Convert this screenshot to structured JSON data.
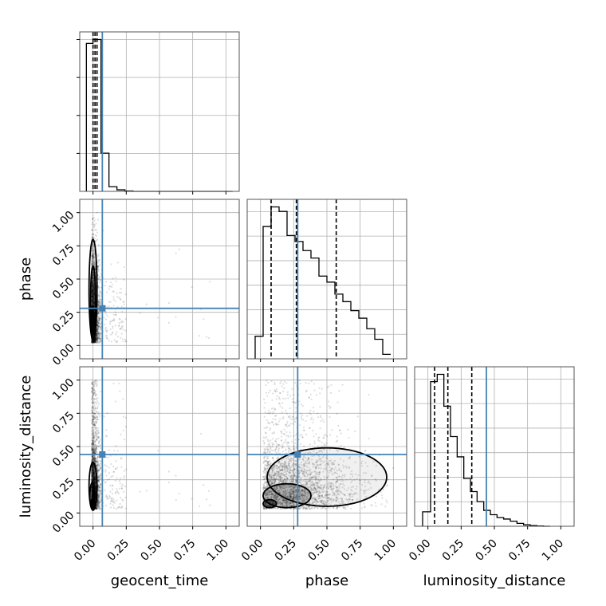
{
  "chart_data": {
    "type": "corner",
    "parameters": [
      "geocent_time",
      "phase",
      "luminosity_distance"
    ],
    "axis_labels": {
      "geocent_time": "geocent_time",
      "phase": "phase",
      "luminosity_distance": "luminosity_distance"
    },
    "range": [
      -0.1,
      1.1
    ],
    "ticks": [
      0.0,
      0.25,
      0.5,
      0.75,
      1.0
    ],
    "tick_labels": [
      "0.00",
      "0.25",
      "0.50",
      "0.75",
      "1.00"
    ],
    "grid": true,
    "truths": {
      "geocent_time": 0.07,
      "phase": 0.28,
      "luminosity_distance": 0.44
    },
    "truth_color": "#4682b4",
    "histogram_color": "#000000",
    "quantiles": {
      "geocent_time": [
        0.0,
        0.015,
        0.03
      ],
      "phase": [
        0.08,
        0.27,
        0.57
      ],
      "luminosity_distance": [
        0.05,
        0.15,
        0.33
      ]
    },
    "histograms": {
      "geocent_time": {
        "bin_edges": [
          -0.05,
          0.0,
          0.06,
          0.12,
          0.18,
          0.24,
          0.3,
          1.05
        ],
        "counts": [
          3.8,
          3.9,
          0.98,
          0.12,
          0.04,
          0.01,
          0.0
        ]
      },
      "phase": {
        "bin_edges": [
          -0.04,
          0.02,
          0.08,
          0.14,
          0.2,
          0.26,
          0.32,
          0.38,
          0.44,
          0.5,
          0.56,
          0.62,
          0.68,
          0.74,
          0.8,
          0.86,
          0.92,
          0.98
        ],
        "counts": [
          0.15,
          0.88,
          1.01,
          0.98,
          0.82,
          0.78,
          0.72,
          0.67,
          0.55,
          0.51,
          0.43,
          0.38,
          0.32,
          0.27,
          0.2,
          0.13,
          0.03
        ]
      },
      "luminosity_distance": {
        "bin_edges": [
          -0.04,
          0.02,
          0.07,
          0.12,
          0.17,
          0.22,
          0.27,
          0.32,
          0.37,
          0.42,
          0.47,
          0.52,
          0.57,
          0.62,
          0.67,
          0.72,
          0.77,
          0.82,
          0.87,
          0.92
        ],
        "counts": [
          0.1,
          1.0,
          1.05,
          0.83,
          0.62,
          0.48,
          0.33,
          0.24,
          0.17,
          0.11,
          0.08,
          0.06,
          0.05,
          0.035,
          0.02,
          0.01,
          0.005,
          0.002,
          0.0
        ]
      }
    },
    "scatter_samples": 2600,
    "contours": {
      "phase_vs_geocent_time": [
        {
          "cx": 0.0,
          "cy": 0.42,
          "rx": 0.03,
          "ry": 0.38
        },
        {
          "cx": 0.0,
          "cy": 0.34,
          "rx": 0.018,
          "ry": 0.26
        },
        {
          "cx": -0.005,
          "cy": 0.2,
          "rx": 0.008,
          "ry": 0.1
        }
      ],
      "luminosity_distance_vs_geocent_time": [
        {
          "cx": 0.0,
          "cy": 0.2,
          "rx": 0.03,
          "ry": 0.18
        },
        {
          "cx": -0.005,
          "cy": 0.13,
          "rx": 0.018,
          "ry": 0.1
        },
        {
          "cx": -0.008,
          "cy": 0.07,
          "rx": 0.008,
          "ry": 0.03
        }
      ],
      "luminosity_distance_vs_phase": [
        {
          "cx": 0.5,
          "cy": 0.27,
          "rx": 0.45,
          "ry": 0.22
        },
        {
          "cx": 0.2,
          "cy": 0.13,
          "rx": 0.18,
          "ry": 0.09
        },
        {
          "cx": 0.07,
          "cy": 0.07,
          "rx": 0.05,
          "ry": 0.03
        }
      ]
    }
  }
}
